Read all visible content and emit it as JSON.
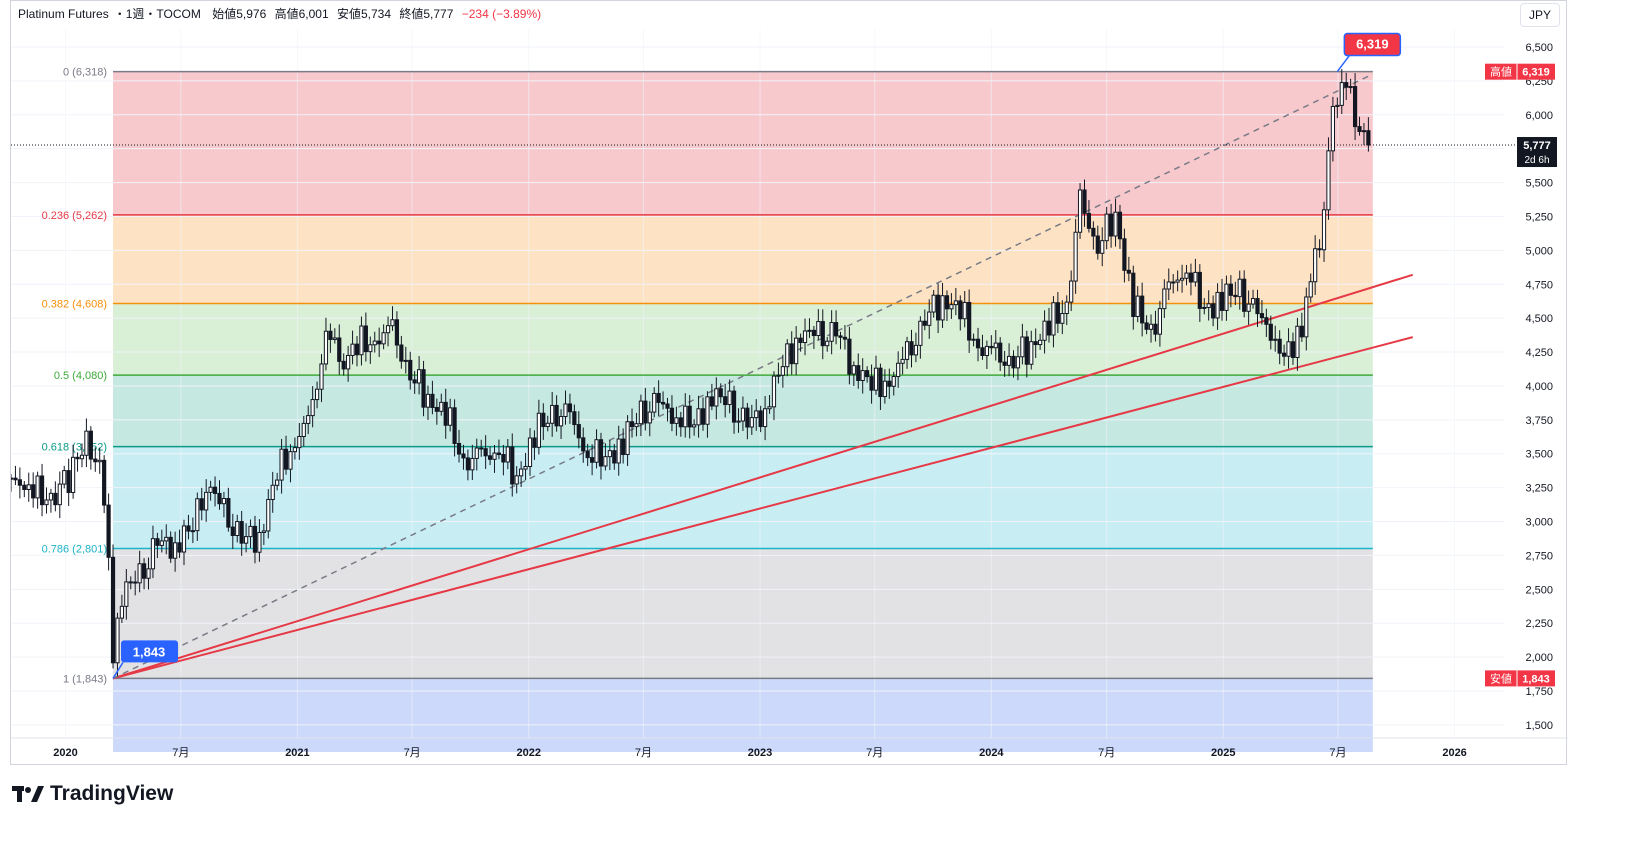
{
  "header": {
    "symbol": "Platinum Futures",
    "interval": "1週",
    "exchange": "TOCOM",
    "open": "始値5,976",
    "high": "高値6,001",
    "low": "安値5,734",
    "close": "終値5,777",
    "change": "−234 (−3.89%)",
    "change_color": "#f23645",
    "sep": "・"
  },
  "currency": "JPY",
  "brand": "TradingView",
  "chart_data": {
    "type": "candlestick",
    "ylim": [
      1300,
      6650
    ],
    "yticks": [
      1500,
      1750,
      2000,
      2250,
      2500,
      2750,
      3000,
      3250,
      3500,
      3750,
      4000,
      4250,
      4500,
      4750,
      5000,
      5250,
      5500,
      5750,
      6000,
      6250,
      6500
    ],
    "ytick_labels": [
      "1,500",
      "1,750",
      "2,000",
      "2,250",
      "2,500",
      "2,750",
      "3,000",
      "3,250",
      "3,500",
      "3,750",
      "4,000",
      "4,250",
      "4,500",
      "4,750",
      "5,000",
      "5,250",
      "5,500",
      "5,750",
      "6,000",
      "6,250",
      "6,500"
    ],
    "xlim": [
      "2019-10-07",
      "2026-03-20"
    ],
    "xticks": [
      {
        "date": "2020-01-01",
        "label": "2020",
        "bold": true
      },
      {
        "date": "2020-07-01",
        "label": "7月",
        "bold": false
      },
      {
        "date": "2021-01-01",
        "label": "2021",
        "bold": true
      },
      {
        "date": "2021-07-01",
        "label": "7月",
        "bold": false
      },
      {
        "date": "2022-01-01",
        "label": "2022",
        "bold": true
      },
      {
        "date": "2022-07-01",
        "label": "7月",
        "bold": false
      },
      {
        "date": "2023-01-01",
        "label": "2023",
        "bold": true
      },
      {
        "date": "2023-07-01",
        "label": "7月",
        "bold": false
      },
      {
        "date": "2024-01-01",
        "label": "2024",
        "bold": true
      },
      {
        "date": "2024-07-01",
        "label": "7月",
        "bold": false
      },
      {
        "date": "2025-01-01",
        "label": "2025",
        "bold": true
      },
      {
        "date": "2025-07-01",
        "label": "7月",
        "bold": false
      },
      {
        "date": "2026-01-01",
        "label": "2026",
        "bold": true
      }
    ],
    "series": [
      {
        "date": "2019-10-07",
        "close": 3270
      },
      {
        "date": "2019-11-04",
        "close": 3300
      },
      {
        "date": "2019-12-02",
        "close": 3130
      },
      {
        "date": "2020-01-06",
        "close": 3330
      },
      {
        "date": "2020-02-03",
        "close": 3580
      },
      {
        "date": "2020-02-24",
        "close": 3430
      },
      {
        "date": "2020-03-09",
        "close": 2750
      },
      {
        "date": "2020-03-16",
        "close": 1950
      },
      {
        "date": "2020-03-30",
        "close": 2480
      },
      {
        "date": "2020-04-27",
        "close": 2580
      },
      {
        "date": "2020-05-25",
        "close": 2830
      },
      {
        "date": "2020-06-22",
        "close": 2840
      },
      {
        "date": "2020-07-20",
        "close": 2950
      },
      {
        "date": "2020-08-10",
        "close": 3300
      },
      {
        "date": "2020-09-07",
        "close": 3050
      },
      {
        "date": "2020-10-05",
        "close": 2870
      },
      {
        "date": "2020-11-02",
        "close": 2900
      },
      {
        "date": "2020-11-30",
        "close": 3350
      },
      {
        "date": "2020-12-28",
        "close": 3600
      },
      {
        "date": "2021-01-25",
        "close": 3780
      },
      {
        "date": "2021-02-15",
        "close": 4450
      },
      {
        "date": "2021-03-08",
        "close": 4150
      },
      {
        "date": "2021-04-05",
        "close": 4300
      },
      {
        "date": "2021-05-03",
        "close": 4350
      },
      {
        "date": "2021-05-31",
        "close": 4380
      },
      {
        "date": "2021-06-28",
        "close": 4100
      },
      {
        "date": "2021-07-26",
        "close": 3900
      },
      {
        "date": "2021-08-23",
        "close": 3800
      },
      {
        "date": "2021-09-20",
        "close": 3450
      },
      {
        "date": "2021-10-18",
        "close": 3450
      },
      {
        "date": "2021-11-15",
        "close": 3550
      },
      {
        "date": "2021-12-13",
        "close": 3300
      },
      {
        "date": "2022-01-10",
        "close": 3650
      },
      {
        "date": "2022-02-07",
        "close": 3800
      },
      {
        "date": "2022-03-07",
        "close": 3750
      },
      {
        "date": "2022-04-04",
        "close": 3520
      },
      {
        "date": "2022-05-02",
        "close": 3450
      },
      {
        "date": "2022-05-30",
        "close": 3600
      },
      {
        "date": "2022-06-27",
        "close": 3800
      },
      {
        "date": "2022-07-25",
        "close": 3850
      },
      {
        "date": "2022-08-22",
        "close": 3800
      },
      {
        "date": "2022-09-19",
        "close": 3700
      },
      {
        "date": "2022-10-17",
        "close": 3950
      },
      {
        "date": "2022-11-14",
        "close": 3850
      },
      {
        "date": "2022-12-12",
        "close": 3700
      },
      {
        "date": "2023-01-09",
        "close": 3850
      },
      {
        "date": "2023-02-06",
        "close": 4150
      },
      {
        "date": "2023-03-06",
        "close": 4400
      },
      {
        "date": "2023-04-03",
        "close": 4350
      },
      {
        "date": "2023-05-01",
        "close": 4400
      },
      {
        "date": "2023-05-29",
        "close": 4150
      },
      {
        "date": "2023-06-26",
        "close": 4000
      },
      {
        "date": "2023-07-24",
        "close": 4050
      },
      {
        "date": "2023-08-21",
        "close": 4200
      },
      {
        "date": "2023-09-18",
        "close": 4500
      },
      {
        "date": "2023-10-16",
        "close": 4650
      },
      {
        "date": "2023-11-13",
        "close": 4550
      },
      {
        "date": "2023-12-11",
        "close": 4300
      },
      {
        "date": "2024-01-08",
        "close": 4200
      },
      {
        "date": "2024-02-05",
        "close": 4200
      },
      {
        "date": "2024-03-04",
        "close": 4300
      },
      {
        "date": "2024-04-01",
        "close": 4450
      },
      {
        "date": "2024-04-29",
        "close": 4600
      },
      {
        "date": "2024-05-20",
        "close": 5350
      },
      {
        "date": "2024-06-17",
        "close": 5050
      },
      {
        "date": "2024-07-15",
        "close": 5250
      },
      {
        "date": "2024-08-12",
        "close": 4600
      },
      {
        "date": "2024-09-09",
        "close": 4400
      },
      {
        "date": "2024-10-07",
        "close": 4700
      },
      {
        "date": "2024-11-04",
        "close": 4900
      },
      {
        "date": "2024-12-02",
        "close": 4550
      },
      {
        "date": "2024-12-30",
        "close": 4650
      },
      {
        "date": "2025-01-27",
        "close": 4700
      },
      {
        "date": "2025-02-24",
        "close": 4500
      },
      {
        "date": "2025-03-24",
        "close": 4400
      },
      {
        "date": "2025-04-07",
        "close": 4200
      },
      {
        "date": "2025-05-05",
        "close": 4450
      },
      {
        "date": "2025-05-26",
        "close": 4900
      },
      {
        "date": "2025-06-09",
        "close": 5300
      },
      {
        "date": "2025-06-23",
        "close": 6100
      },
      {
        "date": "2025-07-14",
        "close": 6200
      },
      {
        "date": "2025-08-04",
        "close": 5950
      },
      {
        "date": "2025-08-18",
        "close": 5777
      }
    ],
    "fib_levels": [
      {
        "ratio": "0",
        "price": 6318,
        "label": "0 (6,318)",
        "color": "#787b86",
        "fill": "#f7c9cd"
      },
      {
        "ratio": "0.236",
        "price": 5262,
        "label": "0.236 (5,262)",
        "color": "#e53946",
        "fill": "#fde3c4"
      },
      {
        "ratio": "0.382",
        "price": 4608,
        "label": "0.382 (4,608)",
        "color": "#f5900a",
        "fill": "#d9efd6"
      },
      {
        "ratio": "0.5",
        "price": 4080,
        "label": "0.5 (4,080)",
        "color": "#3eaa3a",
        "fill": "#c5e8e1"
      },
      {
        "ratio": "0.618",
        "price": 3552,
        "label": "0.618 (3,552)",
        "color": "#0a9a86",
        "fill": "#c8eef4"
      },
      {
        "ratio": "0.786",
        "price": 2801,
        "label": "0.786 (2,801)",
        "color": "#1bb4c7",
        "fill": "#e2e2e4"
      },
      {
        "ratio": "1",
        "price": 1843,
        "label": "1 (1,843)",
        "color": "#787b86",
        "fill": "#cdd9fb"
      }
    ],
    "fib_extension_low": 1300,
    "fib_start_date": "2020-03-16",
    "fib_end_date": "2025-08-25",
    "dashed_trend": {
      "from": {
        "date": "2020-03-16",
        "price": 1843
      },
      "to": {
        "date": "2025-08-25",
        "price": 6318
      },
      "extend_to": {
        "date": "2025-08-25",
        "price": 6300
      }
    },
    "red_trendlines": [
      {
        "from": {
          "date": "2020-03-16",
          "price": 1843
        },
        "to": {
          "date": "2025-10-27",
          "price": 4820
        }
      },
      {
        "from": {
          "date": "2020-03-16",
          "price": 1843
        },
        "to": {
          "date": "2025-10-27",
          "price": 4360
        }
      }
    ],
    "high_marker": {
      "date": "2025-06-30",
      "price": 6319,
      "label": "6,319"
    },
    "low_marker": {
      "date": "2020-03-16",
      "price": 1843,
      "label": "1,843"
    },
    "price_tags": [
      {
        "price": 6318,
        "tag": "高値",
        "value": "6,319",
        "color": "#f23645"
      },
      {
        "price": 1843,
        "tag": "安値",
        "value": "1,843",
        "color": "#f23645"
      }
    ],
    "last_price": {
      "price": 5777,
      "value": "5,777",
      "countdown": "2d 6h"
    }
  }
}
